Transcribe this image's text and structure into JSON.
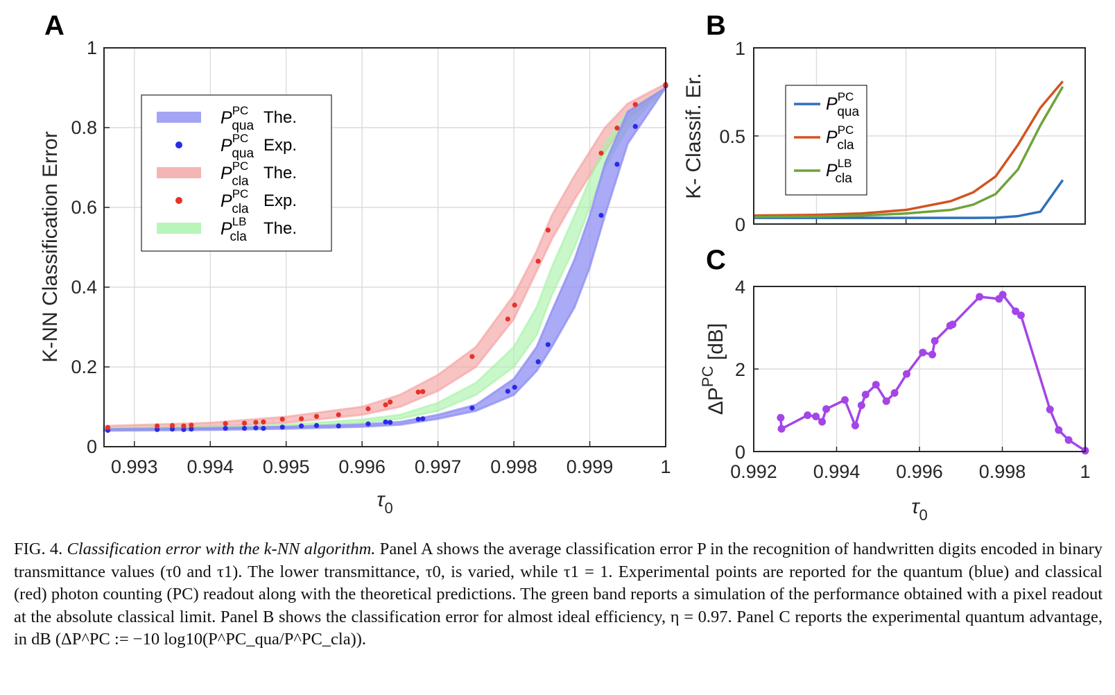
{
  "panels": {
    "a": "A",
    "b": "B",
    "c": "C"
  },
  "colors": {
    "qua": "#2a2ae6",
    "cla": "#e63228",
    "qua_band": "#8d8df3",
    "cla_band": "#f4a3a3",
    "lb_band": "#a6f2a6",
    "b_qua": "#2f6fba",
    "b_cla": "#d35420",
    "b_lb": "#6fa33a",
    "c_line": "#a445e8"
  },
  "chart_data": [
    {
      "id": "A",
      "type": "line",
      "xlabel": "τ0",
      "ylabel": "K-NN Classification Error",
      "xlim": [
        0.9926,
        1.0
      ],
      "ylim": [
        0,
        1
      ],
      "xticks": [
        "0.993",
        "0.994",
        "0.995",
        "0.996",
        "0.997",
        "0.998",
        "0.999",
        "1"
      ],
      "yticks": [
        "0",
        "0.2",
        "0.4",
        "0.6",
        "0.8",
        "1"
      ],
      "grid": true,
      "legend_position": "upper-left",
      "legend": [
        {
          "sym": "P",
          "sup": "PC",
          "sub": "qua",
          "tag": "The."
        },
        {
          "sym": "P",
          "sup": "PC",
          "sub": "qua",
          "tag": "Exp."
        },
        {
          "sym": "P",
          "sup": "PC",
          "sub": "cla",
          "tag": "The."
        },
        {
          "sym": "P",
          "sup": "PC",
          "sub": "cla",
          "tag": "Exp."
        },
        {
          "sym": "P",
          "sup": "LB",
          "sub": "cla",
          "tag": "The."
        }
      ],
      "bands": [
        {
          "series": "qua_theory",
          "x": [
            0.9926,
            0.994,
            0.995,
            0.996,
            0.9965,
            0.997,
            0.9975,
            0.998,
            0.9983,
            0.9985,
            0.9988,
            0.999,
            0.9992,
            0.9995,
            1.0
          ],
          "lower": [
            0.04,
            0.042,
            0.045,
            0.05,
            0.055,
            0.07,
            0.09,
            0.13,
            0.19,
            0.25,
            0.35,
            0.45,
            0.58,
            0.76,
            0.9
          ],
          "upper": [
            0.044,
            0.047,
            0.05,
            0.056,
            0.062,
            0.08,
            0.105,
            0.17,
            0.25,
            0.34,
            0.47,
            0.58,
            0.71,
            0.84,
            0.9
          ]
        },
        {
          "series": "cla_theory",
          "x": [
            0.9926,
            0.994,
            0.995,
            0.996,
            0.9965,
            0.997,
            0.9975,
            0.998,
            0.9983,
            0.9985,
            0.9988,
            0.999,
            0.9992,
            0.9995,
            1.0
          ],
          "lower": [
            0.045,
            0.05,
            0.06,
            0.08,
            0.1,
            0.14,
            0.2,
            0.32,
            0.44,
            0.52,
            0.62,
            0.68,
            0.74,
            0.82,
            0.9
          ],
          "upper": [
            0.052,
            0.06,
            0.075,
            0.1,
            0.13,
            0.18,
            0.25,
            0.38,
            0.49,
            0.58,
            0.68,
            0.74,
            0.8,
            0.86,
            0.91
          ]
        },
        {
          "series": "lb_theory",
          "x": [
            0.9926,
            0.994,
            0.995,
            0.996,
            0.9965,
            0.997,
            0.9975,
            0.998,
            0.9983,
            0.9985,
            0.9988,
            0.999,
            0.9992,
            0.9995,
            1.0
          ],
          "lower": [
            0.042,
            0.045,
            0.05,
            0.06,
            0.07,
            0.09,
            0.13,
            0.2,
            0.28,
            0.38,
            0.5,
            0.6,
            0.7,
            0.8,
            0.9
          ],
          "upper": [
            0.046,
            0.05,
            0.055,
            0.068,
            0.08,
            0.11,
            0.16,
            0.25,
            0.35,
            0.45,
            0.58,
            0.67,
            0.76,
            0.84,
            0.9
          ]
        }
      ],
      "series": [
        {
          "key": "qua_exp",
          "x": [
            0.99265,
            0.9933,
            0.9935,
            0.99365,
            0.99375,
            0.9942,
            0.99445,
            0.9946,
            0.9947,
            0.99495,
            0.9952,
            0.9954,
            0.99569,
            0.99608,
            0.99631,
            0.99637,
            0.99674,
            0.9968,
            0.99745,
            0.99792,
            0.99801,
            0.99832,
            0.99845,
            0.99915,
            0.99936,
            0.9996,
            1.0
          ],
          "y": [
            0.041,
            0.043,
            0.044,
            0.043,
            0.044,
            0.046,
            0.046,
            0.047,
            0.046,
            0.049,
            0.052,
            0.053,
            0.052,
            0.057,
            0.062,
            0.061,
            0.069,
            0.07,
            0.097,
            0.139,
            0.149,
            0.213,
            0.256,
            0.58,
            0.708,
            0.803,
            0.905
          ]
        },
        {
          "key": "cla_exp",
          "x": [
            0.99265,
            0.9933,
            0.9935,
            0.99365,
            0.99375,
            0.9942,
            0.99445,
            0.9946,
            0.9947,
            0.99495,
            0.9952,
            0.9954,
            0.99569,
            0.99608,
            0.99631,
            0.99637,
            0.99674,
            0.9968,
            0.99745,
            0.99792,
            0.99801,
            0.99832,
            0.99845,
            0.99915,
            0.99936,
            0.9996,
            1.0
          ],
          "y": [
            0.048,
            0.052,
            0.053,
            0.052,
            0.054,
            0.058,
            0.059,
            0.061,
            0.062,
            0.069,
            0.07,
            0.076,
            0.08,
            0.095,
            0.105,
            0.112,
            0.137,
            0.138,
            0.226,
            0.32,
            0.355,
            0.465,
            0.543,
            0.736,
            0.799,
            0.858,
            0.908
          ]
        }
      ]
    },
    {
      "id": "B",
      "type": "line",
      "ylabel": "K- Classif. Er.",
      "xlim": [
        0.9926,
        1.0
      ],
      "ylim": [
        0,
        1
      ],
      "xticks_at": [
        0.994,
        0.996,
        0.998,
        1.0
      ],
      "yticks": [
        "0",
        "0.5",
        "1"
      ],
      "grid": true,
      "legend_position": "upper-left",
      "legend": [
        {
          "sym": "P",
          "sup": "PC",
          "sub": "qua"
        },
        {
          "sym": "P",
          "sup": "PC",
          "sub": "cla"
        },
        {
          "sym": "P",
          "sup": "LB",
          "sub": "cla"
        }
      ],
      "series": [
        {
          "key": "qua",
          "x": [
            0.9926,
            0.994,
            0.995,
            0.996,
            0.997,
            0.9975,
            0.998,
            0.9985,
            0.999,
            0.9995
          ],
          "y": [
            0.035,
            0.035,
            0.035,
            0.035,
            0.035,
            0.035,
            0.036,
            0.045,
            0.07,
            0.25
          ]
        },
        {
          "key": "cla",
          "x": [
            0.9926,
            0.994,
            0.995,
            0.996,
            0.997,
            0.9975,
            0.998,
            0.9985,
            0.999,
            0.9995
          ],
          "y": [
            0.048,
            0.052,
            0.06,
            0.08,
            0.13,
            0.18,
            0.27,
            0.45,
            0.66,
            0.81
          ]
        },
        {
          "key": "lb",
          "x": [
            0.9926,
            0.994,
            0.995,
            0.996,
            0.997,
            0.9975,
            0.998,
            0.9985,
            0.999,
            0.9995
          ],
          "y": [
            0.04,
            0.043,
            0.048,
            0.06,
            0.08,
            0.11,
            0.17,
            0.31,
            0.56,
            0.78
          ]
        }
      ]
    },
    {
      "id": "C",
      "type": "line",
      "xlabel": "τ0",
      "ylabel": "ΔP^PC [dB]",
      "xlim": [
        0.992,
        1.0
      ],
      "ylim": [
        0,
        4
      ],
      "xticks": [
        "0.992",
        "0.994",
        "0.996",
        "0.998",
        "1"
      ],
      "yticks": [
        "0",
        "2",
        "4"
      ],
      "grid": true,
      "series": [
        {
          "key": "adv",
          "x": [
            0.99265,
            0.99267,
            0.9933,
            0.9935,
            0.99365,
            0.99375,
            0.9942,
            0.99445,
            0.9946,
            0.9947,
            0.99495,
            0.9952,
            0.9954,
            0.99569,
            0.99608,
            0.99631,
            0.99637,
            0.99674,
            0.9968,
            0.99745,
            0.99792,
            0.99801,
            0.99832,
            0.99845,
            0.99915,
            0.99936,
            0.9996,
            1.0
          ],
          "y": [
            0.82,
            0.55,
            0.88,
            0.85,
            0.72,
            1.03,
            1.25,
            0.63,
            1.12,
            1.38,
            1.62,
            1.22,
            1.42,
            1.88,
            2.4,
            2.35,
            2.68,
            3.05,
            3.08,
            3.75,
            3.7,
            3.8,
            3.4,
            3.3,
            1.02,
            0.52,
            0.28,
            0.02
          ]
        }
      ]
    }
  ],
  "caption": {
    "label": "FIG. 4.",
    "title": "Classification error with the k-NN algorithm.",
    "body": " Panel A shows the average classification error P in the recognition of handwritten digits encoded in binary transmittance values (τ0 and τ1). The lower transmittance, τ0, is varied, while τ1 = 1. Experimental points are reported for the quantum (blue) and classical (red) photon counting (PC) readout along with the theoretical predictions. The green band reports a simulation of the performance obtained with a pixel readout at the absolute classical limit. Panel B shows the classification error for almost ideal efficiency, η = 0.97. Panel C reports the experimental quantum advantage, in dB (ΔP^PC := −10 log10(P^PC_qua/P^PC_cla))."
  }
}
